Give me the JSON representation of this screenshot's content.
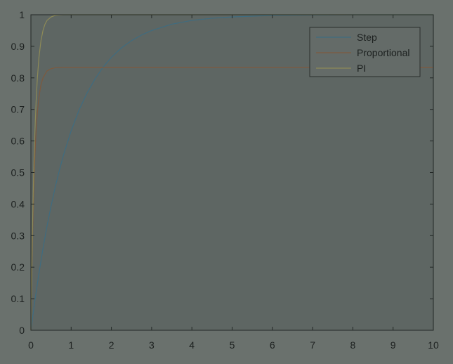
{
  "chart_data": {
    "type": "line",
    "title": "",
    "xlabel": "",
    "ylabel": "",
    "xlim": [
      0,
      10
    ],
    "ylim": [
      0,
      1
    ],
    "xticks": [
      "0",
      "1",
      "2",
      "3",
      "4",
      "5",
      "6",
      "7",
      "8",
      "9",
      "10"
    ],
    "yticks": [
      "0",
      "0.1",
      "0.2",
      "0.3",
      "0.4",
      "0.5",
      "0.6",
      "0.7",
      "0.8",
      "0.9",
      "1"
    ],
    "grid": false,
    "legend_position": "top-right",
    "colors": {
      "background": "#6a716d",
      "axes": "#5e6663",
      "axis_line": "#232826",
      "legend_bg": "#646b68"
    },
    "series": [
      {
        "name": "Step",
        "color": "#3f6c80",
        "x": [
          0,
          0.1,
          0.2,
          0.3,
          0.4,
          0.5,
          0.6,
          0.7,
          0.8,
          1.0,
          1.2,
          1.4,
          1.6,
          1.8,
          2.0,
          2.25,
          2.5,
          2.75,
          3.0,
          3.5,
          4.0,
          4.5,
          5.0,
          6.0,
          7.0,
          8.0,
          10.0
        ],
        "y": [
          0,
          0.095,
          0.181,
          0.259,
          0.33,
          0.393,
          0.451,
          0.503,
          0.551,
          0.632,
          0.699,
          0.753,
          0.798,
          0.835,
          0.865,
          0.895,
          0.918,
          0.936,
          0.95,
          0.97,
          0.982,
          0.989,
          0.993,
          0.998,
          0.999,
          1.0,
          1.0
        ]
      },
      {
        "name": "Proportional",
        "color": "#7e5a3e",
        "x": [
          0,
          0.02,
          0.04,
          0.06,
          0.08,
          0.1,
          0.13,
          0.16,
          0.2,
          0.25,
          0.3,
          0.4,
          0.5,
          0.6,
          0.8,
          1.0,
          1.5,
          2.0,
          10.0
        ],
        "y": [
          0,
          0.158,
          0.29,
          0.397,
          0.485,
          0.556,
          0.636,
          0.69,
          0.74,
          0.778,
          0.8,
          0.822,
          0.829,
          0.832,
          0.833,
          0.833,
          0.833,
          0.833,
          0.833
        ]
      },
      {
        "name": "PI",
        "color": "#8d8a57",
        "x": [
          0,
          0.02,
          0.04,
          0.06,
          0.08,
          0.1,
          0.13,
          0.16,
          0.2,
          0.25,
          0.3,
          0.35,
          0.4,
          0.5,
          0.6,
          0.7,
          0.8,
          0.9,
          1.0,
          1.2,
          1.5,
          2.0,
          10.0
        ],
        "y": [
          0,
          0.181,
          0.33,
          0.451,
          0.551,
          0.632,
          0.727,
          0.798,
          0.865,
          0.918,
          0.95,
          0.97,
          0.982,
          0.993,
          0.998,
          0.999,
          1.0,
          1.0,
          1.0,
          1.0,
          1.0,
          1.0,
          1.0
        ]
      }
    ]
  }
}
